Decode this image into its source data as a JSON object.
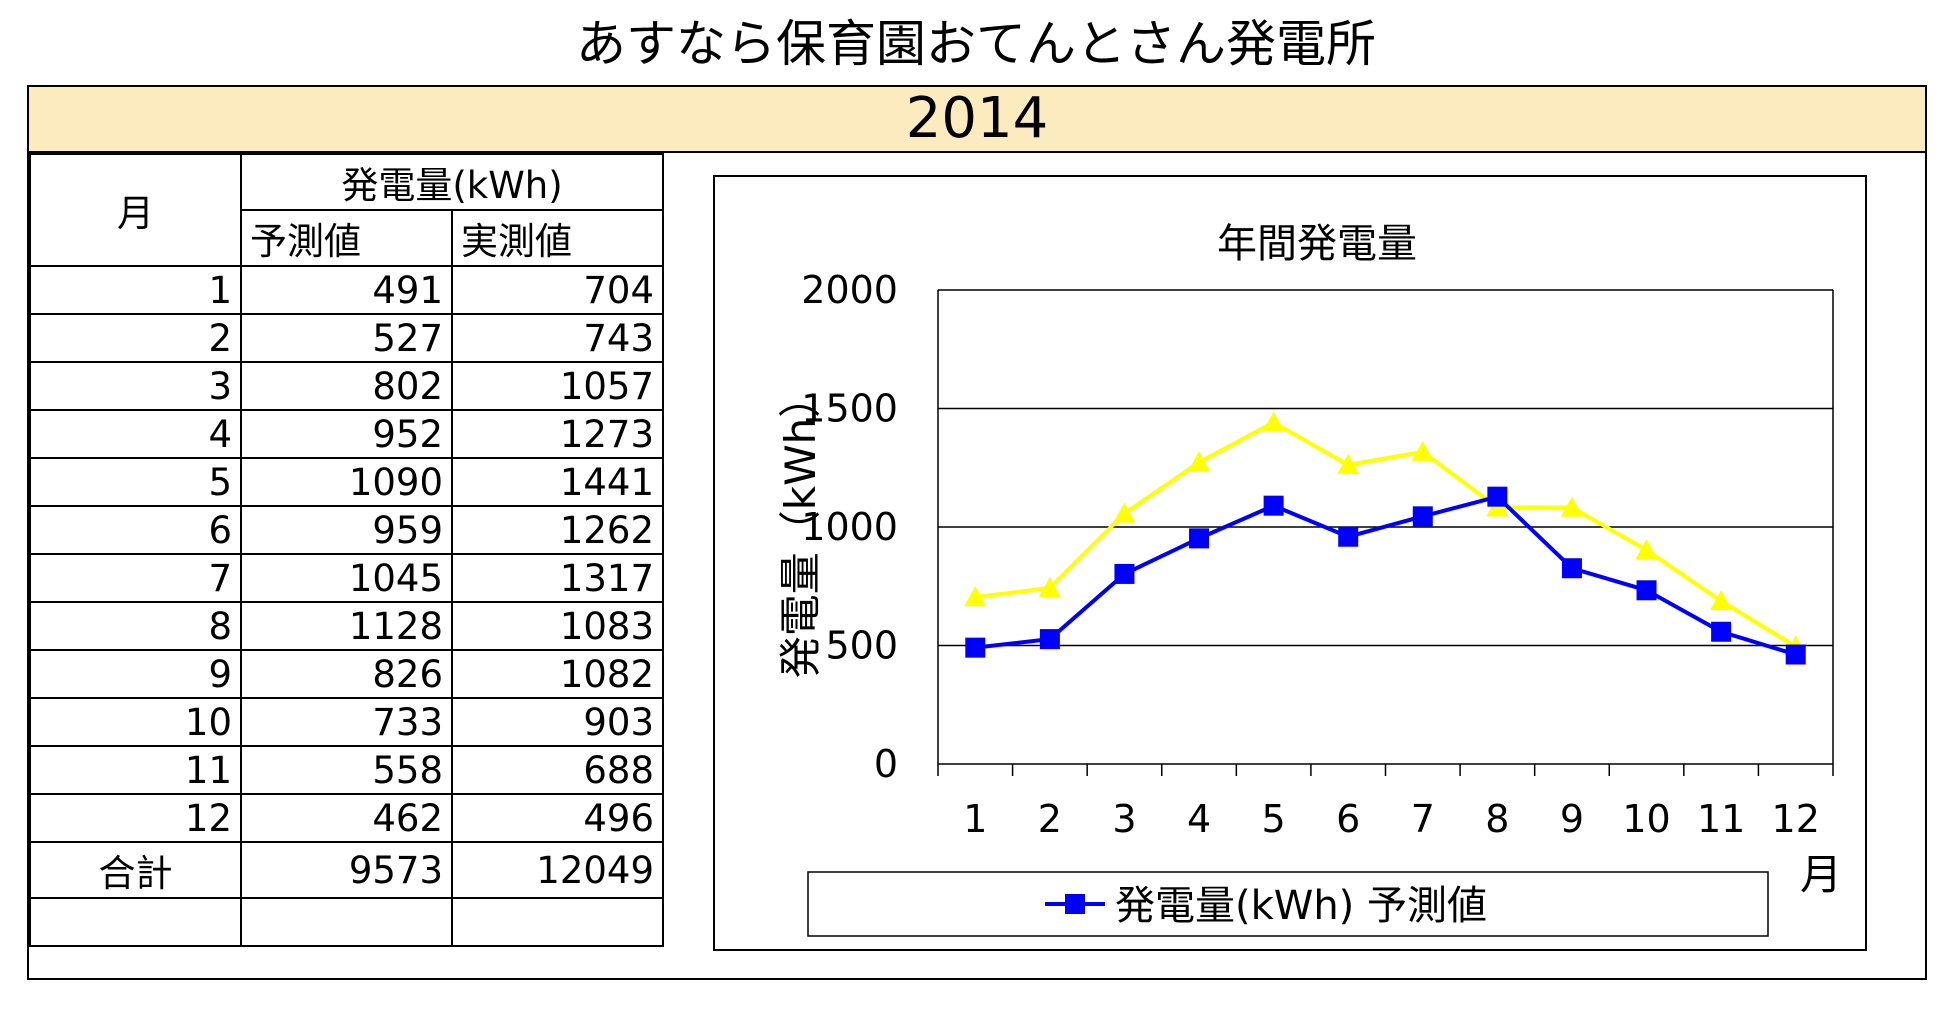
{
  "page": {
    "title": "あすなら保育園おてんとさん発電所",
    "year": "2014"
  },
  "table": {
    "header_month": "月",
    "header_group": "発電量(kWh)",
    "header_predicted": "予測値",
    "header_actual": "実測値",
    "rows": [
      {
        "month": "1",
        "predicted": "491",
        "actual": "704"
      },
      {
        "month": "2",
        "predicted": "527",
        "actual": "743"
      },
      {
        "month": "3",
        "predicted": "802",
        "actual": "1057"
      },
      {
        "month": "4",
        "predicted": "952",
        "actual": "1273"
      },
      {
        "month": "5",
        "predicted": "1090",
        "actual": "1441"
      },
      {
        "month": "6",
        "predicted": "959",
        "actual": "1262"
      },
      {
        "month": "7",
        "predicted": "1045",
        "actual": "1317"
      },
      {
        "month": "8",
        "predicted": "1128",
        "actual": "1083"
      },
      {
        "month": "9",
        "predicted": "826",
        "actual": "1082"
      },
      {
        "month": "10",
        "predicted": "733",
        "actual": "903"
      },
      {
        "month": "11",
        "predicted": "558",
        "actual": "688"
      },
      {
        "month": "12",
        "predicted": "462",
        "actual": "496"
      }
    ],
    "total_label": "合計",
    "total_predicted": "9573",
    "total_actual": "12049"
  },
  "chart_data": {
    "type": "line",
    "title": "年間発電量",
    "ylabel": "発電量（kWh）",
    "xlabel": "月",
    "categories": [
      "1",
      "2",
      "3",
      "4",
      "5",
      "6",
      "7",
      "8",
      "9",
      "10",
      "11",
      "12"
    ],
    "ylim": [
      0,
      2000
    ],
    "yticks": [
      0,
      500,
      1000,
      1500,
      2000
    ],
    "grid": true,
    "legend_position": "bottom",
    "series": [
      {
        "name": "発電量(kWh) 予測値",
        "values": [
          491,
          527,
          802,
          952,
          1090,
          959,
          1045,
          1128,
          826,
          733,
          558,
          462
        ],
        "color": "#0000ff",
        "marker": "square"
      },
      {
        "values": [
          704,
          743,
          1057,
          1273,
          1441,
          1262,
          1317,
          1083,
          1082,
          903,
          688,
          496
        ],
        "color": "#ffff00",
        "marker": "triangle"
      }
    ]
  }
}
